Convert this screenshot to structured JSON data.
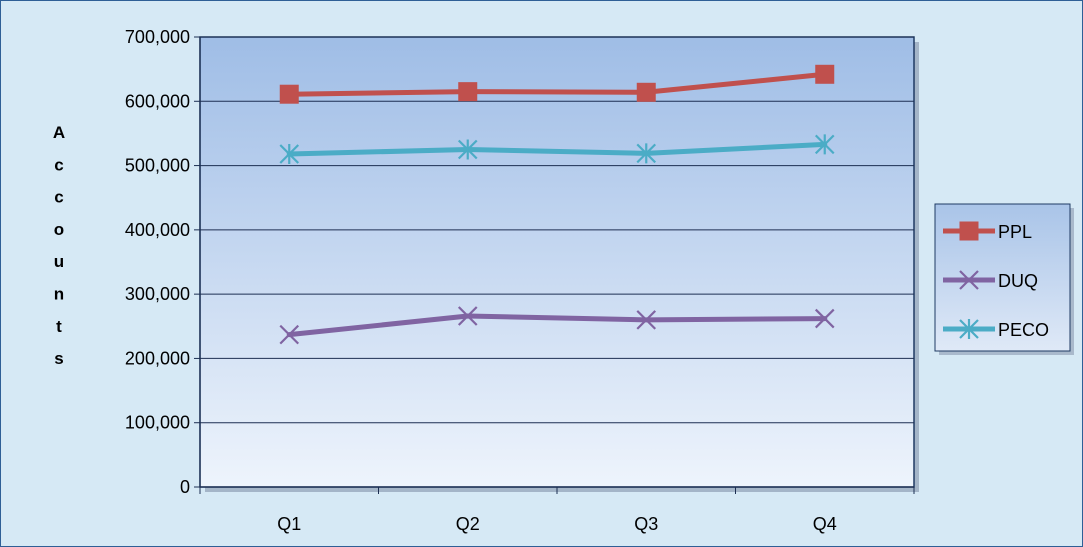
{
  "chart_data": {
    "type": "line",
    "categories": [
      "Q1",
      "Q2",
      "Q3",
      "Q4"
    ],
    "ylabel": "Accounts",
    "ylim": [
      0,
      700000
    ],
    "yticks": [
      0,
      100000,
      200000,
      300000,
      400000,
      500000,
      600000,
      700000
    ],
    "grid": true,
    "legend_position": "right",
    "series": [
      {
        "name": "PPL",
        "values": [
          611000,
          615000,
          614000,
          642000
        ],
        "color": "#c0504d",
        "marker": "square"
      },
      {
        "name": "DUQ",
        "values": [
          237000,
          266000,
          260000,
          262000
        ],
        "color": "#8064a2",
        "marker": "x"
      },
      {
        "name": "PECO",
        "values": [
          518000,
          525000,
          519000,
          533000
        ],
        "color": "#4bacc6",
        "marker": "star"
      }
    ]
  }
}
